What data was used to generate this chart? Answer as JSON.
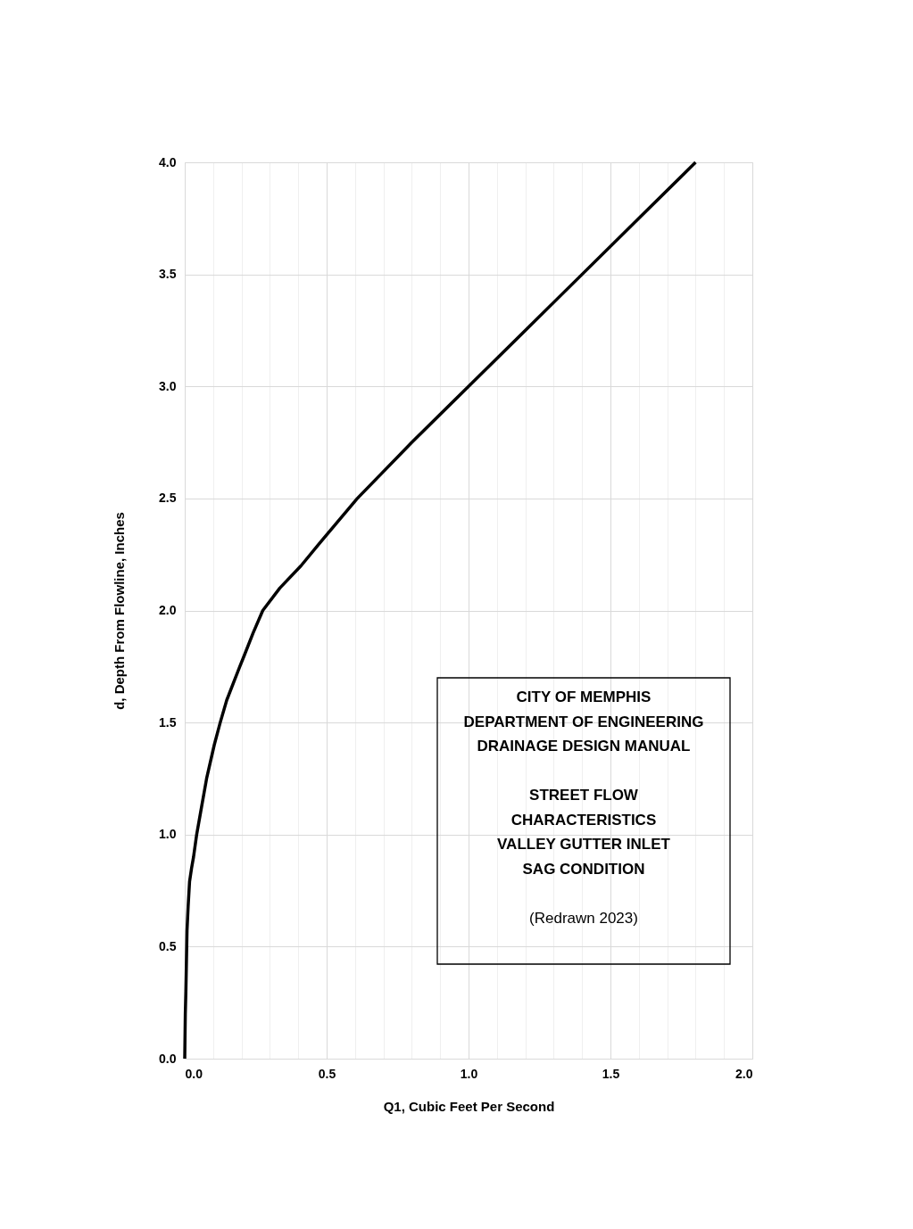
{
  "chart_data": {
    "type": "line",
    "xlabel": "Q1,  Cubic Feet Per Second",
    "ylabel": "d,  Depth From Flowline,  Inches",
    "x": [
      0,
      0.002,
      0.004,
      0.008,
      0.012,
      0.017,
      0.024,
      0.031,
      0.042,
      0.056,
      0.077,
      0.104,
      0.125,
      0.148,
      0.194,
      0.21,
      0.241,
      0.275,
      0.335,
      0.41,
      0.475,
      0.608,
      0.8,
      1.0,
      1.2,
      1.4,
      1.6,
      1.8
    ],
    "series": [
      {
        "color": "#000000",
        "values": [
          0,
          0.2,
          0.3,
          0.57,
          0.68,
          0.79,
          0.85,
          0.9,
          1.0,
          1.1,
          1.25,
          1.4,
          1.5,
          1.6,
          1.75,
          1.8,
          1.9,
          2.0,
          2.1,
          2.2,
          2.3,
          2.5,
          2.75,
          3.0,
          3.25,
          3.5,
          3.75,
          4.0
        ]
      }
    ],
    "xlim": [
      0,
      2
    ],
    "ylim": [
      0,
      4
    ],
    "xticks": [
      {
        "value": 0,
        "label": "0.0"
      },
      {
        "value": 0.1,
        "label": null
      },
      {
        "value": 0.2,
        "label": null
      },
      {
        "value": 0.3,
        "label": null
      },
      {
        "value": 0.4,
        "label": null
      },
      {
        "value": 0.5,
        "label": "0.5"
      },
      {
        "value": 0.6,
        "label": null
      },
      {
        "value": 0.7,
        "label": null
      },
      {
        "value": 0.8,
        "label": null
      },
      {
        "value": 0.9,
        "label": null
      },
      {
        "value": 1,
        "label": "1.0"
      },
      {
        "value": 1.1,
        "label": null
      },
      {
        "value": 1.2,
        "label": null
      },
      {
        "value": 1.3,
        "label": null
      },
      {
        "value": 1.4,
        "label": null
      },
      {
        "value": 1.5,
        "label": "1.5"
      },
      {
        "value": 1.6,
        "label": null
      },
      {
        "value": 1.7,
        "label": null
      },
      {
        "value": 1.8,
        "label": null
      },
      {
        "value": 1.9,
        "label": null
      },
      {
        "value": 2,
        "label": "2.0"
      }
    ],
    "yticks": [
      {
        "value": 0,
        "label": "0.0"
      },
      0.5,
      {
        "value": 1,
        "label": "1.0"
      },
      1.5,
      {
        "value": 2,
        "label": "2.0"
      },
      2.5,
      {
        "value": 3,
        "label": "3.0"
      },
      3.5,
      {
        "value": 4,
        "label": "4.0"
      }
    ],
    "grid": true,
    "marker": "none",
    "line_style": "solid",
    "annotations": [
      "CITY OF MEMPHIS\nDEPARTMENT OF ENGINEERING\nDRAINAGE DESIGN MANUAL",
      "STREET FLOW\nCHARACTERISTICS\nVALLEY GUTTER INLET\nSAG CONDITION",
      "(Redrawn 2023)"
    ]
  }
}
